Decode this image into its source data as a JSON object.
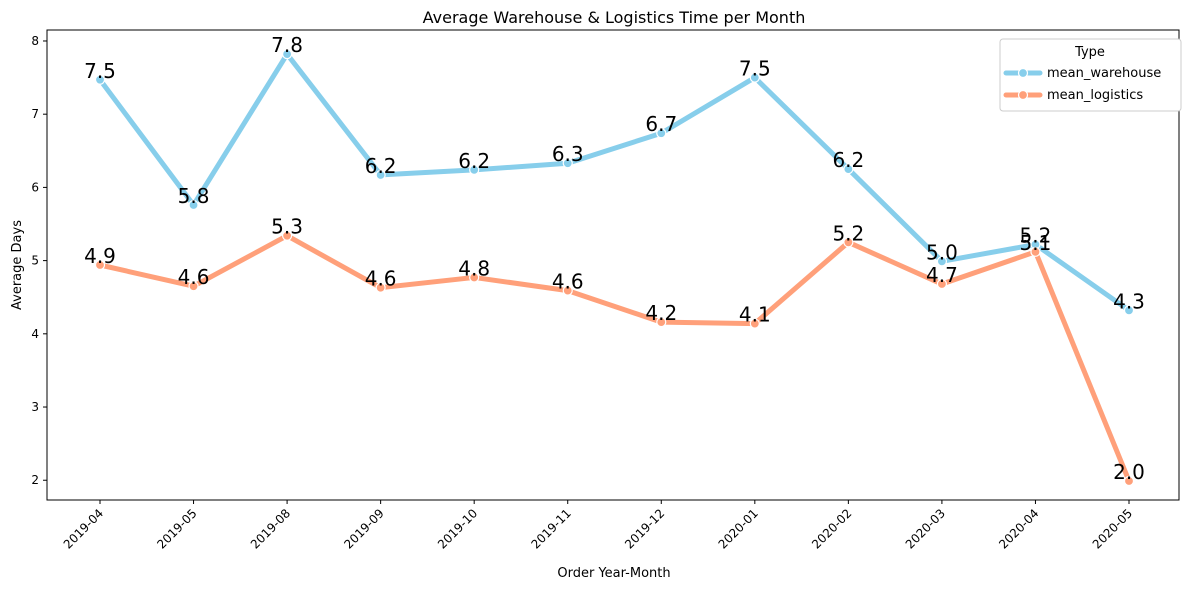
{
  "chart_data": {
    "type": "line",
    "title": "Average Warehouse & Logistics Time per Month",
    "xlabel": "Order Year-Month",
    "ylabel": "Average Days",
    "categories": [
      "2019-04",
      "2019-05",
      "2019-08",
      "2019-09",
      "2019-10",
      "2019-11",
      "2019-12",
      "2020-01",
      "2020-02",
      "2020-03",
      "2020-04",
      "2020-05"
    ],
    "ylim": [
      1.73,
      8.15
    ],
    "yticks": [
      2,
      3,
      4,
      5,
      6,
      7,
      8
    ],
    "grid": false,
    "legend": {
      "title": "Type",
      "placement": "top-right"
    },
    "series": [
      {
        "name": "mean_warehouse",
        "color": "#87CEEB",
        "values": [
          7.47,
          5.76,
          7.82,
          6.17,
          6.24,
          6.33,
          6.74,
          7.5,
          6.25,
          4.99,
          5.22,
          4.32
        ],
        "labels": [
          "7.5",
          "5.8",
          "7.8",
          "6.2",
          "6.2",
          "6.3",
          "6.7",
          "7.5",
          "6.2",
          "5.0",
          "5.2",
          "4.3"
        ]
      },
      {
        "name": "mean_logistics",
        "color": "#FFA07A",
        "values": [
          4.94,
          4.65,
          5.34,
          4.63,
          4.77,
          4.59,
          4.16,
          4.14,
          5.25,
          4.68,
          5.12,
          1.99
        ],
        "labels": [
          "4.9",
          "4.6",
          "5.3",
          "4.6",
          "4.8",
          "4.6",
          "4.2",
          "4.1",
          "5.2",
          "4.7",
          "5.1",
          "2.0"
        ]
      }
    ]
  }
}
